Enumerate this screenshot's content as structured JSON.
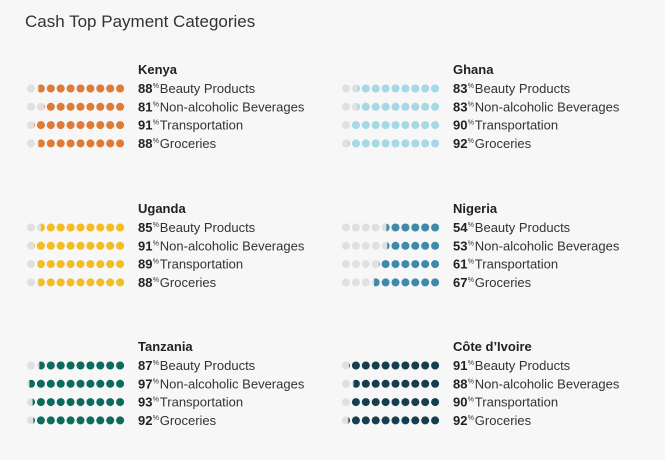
{
  "title": "Cash Top Payment Categories",
  "chart_data": {
    "type": "dot-matrix",
    "title": "Cash Top Payment Categories",
    "dots_per_row": 10,
    "unit_suffix": "%",
    "categories": [
      "Beauty Products",
      "Non-alcoholic Beverages",
      "Transportation",
      "Groceries"
    ],
    "empty_color": "#e0e0e0",
    "countries": [
      {
        "name": "Kenya",
        "color": "#e07a35",
        "values": [
          88,
          81,
          91,
          88
        ]
      },
      {
        "name": "Ghana",
        "color": "#a6d8e6",
        "values": [
          83,
          83,
          90,
          92
        ]
      },
      {
        "name": "Uganda",
        "color": "#f4bd22",
        "values": [
          85,
          91,
          89,
          88
        ]
      },
      {
        "name": "Nigeria",
        "color": "#3e8aa8",
        "values": [
          54,
          53,
          61,
          67
        ]
      },
      {
        "name": "Tanzania",
        "color": "#0b6b5e",
        "values": [
          87,
          97,
          93,
          92
        ]
      },
      {
        "name": "Côte d’Ivoire",
        "color": "#163e4e",
        "values": [
          91,
          88,
          90,
          92
        ]
      }
    ]
  }
}
